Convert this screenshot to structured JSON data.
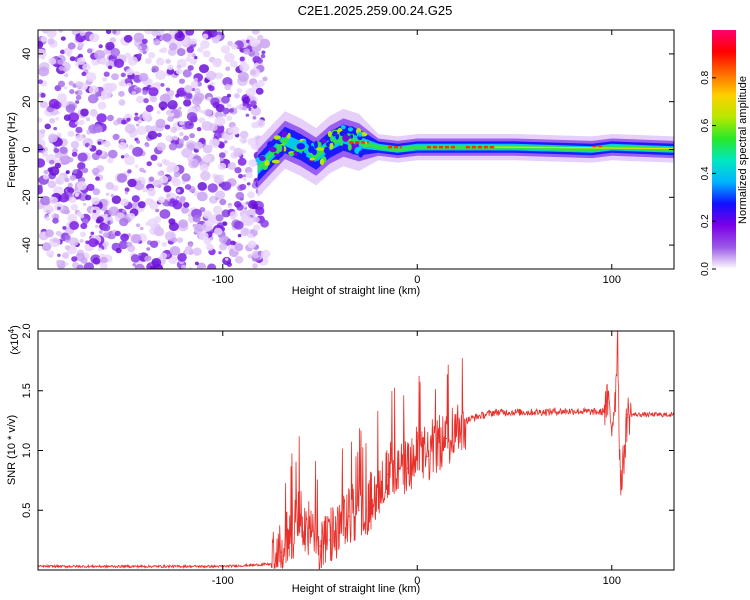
{
  "title": "C2E1.2025.259.00.24.G25",
  "chart_data": [
    {
      "type": "heatmap",
      "xlabel": "Height of straight line (km)",
      "ylabel": "Frequency (Hz)",
      "xlim": [
        -195,
        132
      ],
      "ylim": [
        -50,
        50
      ],
      "xticks": [
        -100,
        0,
        100
      ],
      "xtick_labels": [
        "-100",
        "0",
        "100"
      ],
      "yticks": [
        -40,
        -20,
        0,
        20,
        40
      ],
      "ytick_labels": [
        "-40",
        "-20",
        "0",
        "20",
        "40"
      ],
      "colorbar": {
        "label": "Normalized spectral amplitude",
        "range": [
          0,
          1
        ],
        "ticks": [
          0.0,
          0.2,
          0.4,
          0.6,
          0.8
        ],
        "tick_labels": [
          "0.0",
          "0.2",
          "0.4",
          "0.6",
          "0.8"
        ],
        "colors": [
          "#ffffff",
          "#9b59e6",
          "#7b00e8",
          "#1010ff",
          "#00b4ff",
          "#00e8c0",
          "#28e828",
          "#b8e800",
          "#ffd000",
          "#ff6a00",
          "#ff0000",
          "#ff0070"
        ]
      },
      "noise_region_x": [
        -195,
        -82
      ],
      "ridge": [
        {
          "x": -82,
          "f": -8
        },
        {
          "x": -75,
          "f": -2
        },
        {
          "x": -68,
          "f": 4
        },
        {
          "x": -60,
          "f": 1
        },
        {
          "x": -52,
          "f": -3
        },
        {
          "x": -45,
          "f": 2
        },
        {
          "x": -38,
          "f": 5
        },
        {
          "x": -30,
          "f": 3
        },
        {
          "x": -20,
          "f": 1
        },
        {
          "x": -10,
          "f": 0
        },
        {
          "x": 0,
          "f": 1
        },
        {
          "x": 20,
          "f": 1
        },
        {
          "x": 50,
          "f": 1
        },
        {
          "x": 90,
          "f": 0
        },
        {
          "x": 100,
          "f": 1
        },
        {
          "x": 132,
          "f": 0
        }
      ]
    },
    {
      "type": "line",
      "xlabel": "Height of straight line (km)",
      "ylabel": "SNR (10 * v/v)",
      "y_scale_note": "(x10",
      "y_scale_exp": "4",
      "y_scale_close": ")",
      "xlim": [
        -195,
        132
      ],
      "ylim": [
        0,
        2.0
      ],
      "xticks": [
        -100,
        0,
        100
      ],
      "xtick_labels": [
        "-100",
        "0",
        "100"
      ],
      "yticks": [
        0.5,
        1.0,
        1.5,
        2.0
      ],
      "ytick_labels": [
        "0.5",
        "1.0",
        "1.5",
        "2.0"
      ],
      "series": [
        {
          "color": "#e8302a",
          "x": [
            -195,
            -150,
            -100,
            -85,
            -75,
            -70,
            -65,
            -60,
            -55,
            -50,
            -45,
            -40,
            -35,
            -30,
            -25,
            -20,
            -15,
            -10,
            -5,
            0,
            5,
            10,
            15,
            20,
            25,
            30,
            40,
            60,
            80,
            95,
            98,
            100,
            102,
            103,
            104,
            105,
            108,
            115,
            132
          ],
          "y": [
            0.03,
            0.03,
            0.03,
            0.04,
            0.05,
            0.15,
            0.3,
            0.45,
            0.3,
            0.2,
            0.25,
            0.35,
            0.45,
            0.5,
            0.55,
            0.7,
            0.8,
            0.85,
            0.85,
            0.95,
            0.95,
            1.05,
            1.1,
            1.2,
            1.25,
            1.28,
            1.32,
            1.32,
            1.33,
            1.32,
            1.4,
            1.2,
            1.5,
            2.0,
            1.0,
            0.7,
            1.3,
            1.3,
            1.3
          ]
        }
      ]
    }
  ]
}
